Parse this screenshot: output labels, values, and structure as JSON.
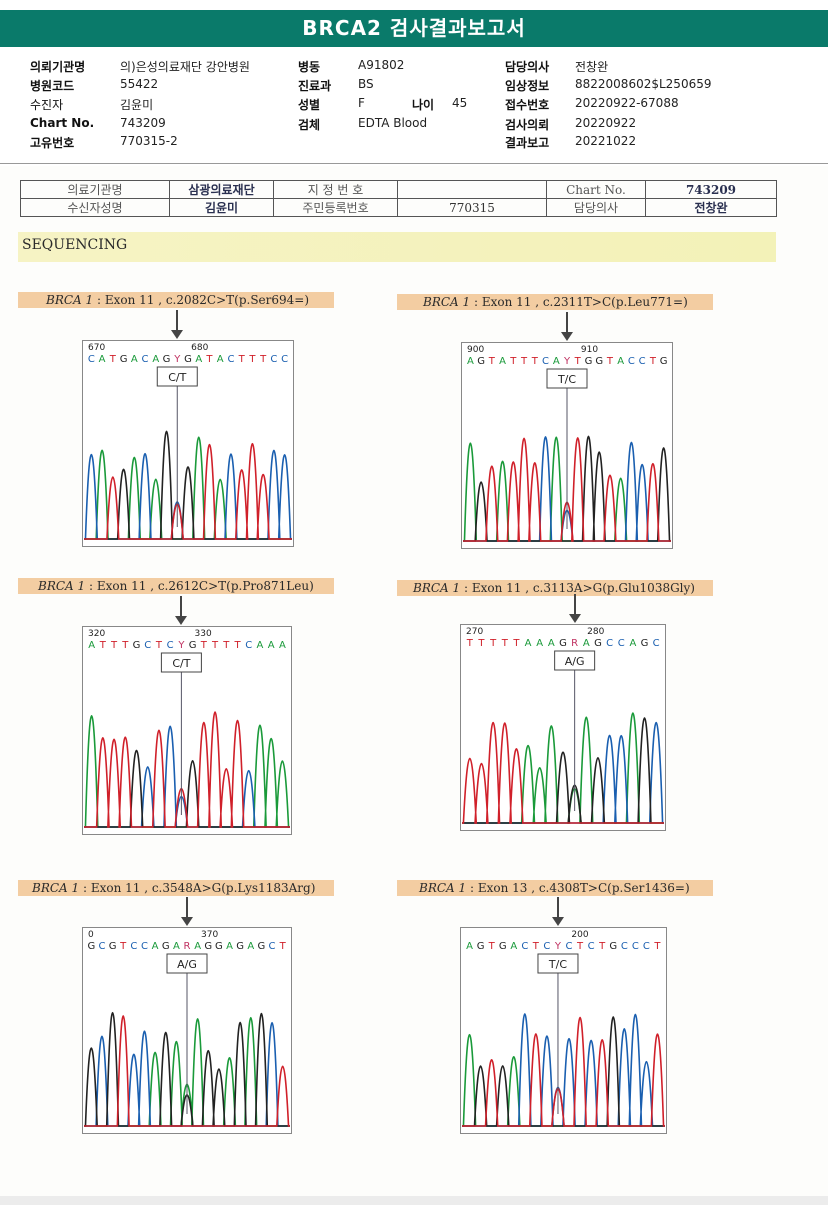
{
  "header": {
    "title": "BRCA2 검사결과보고서"
  },
  "info": {
    "rows": [
      {
        "l1": "의뢰기관명",
        "v1": "의)은성의료재단 강안병원",
        "l2": "병동",
        "v2": "A91802",
        "l3": "담당의사",
        "v3": "전창완"
      },
      {
        "l1": "병원코드",
        "v1": "55422",
        "l2": "진료과",
        "v2": "BS",
        "l3": "임상정보",
        "v3": "8822008602$L250659"
      },
      {
        "l1": "수진자",
        "v1": "김윤미",
        "l2": "성별",
        "v2": "F",
        "l3": "접수번호",
        "v3": "20220922-67088"
      },
      {
        "l1": "Chart No.",
        "v1": "743209",
        "l2": "검체",
        "v2": "EDTA Blood",
        "l3": "검사의뢰",
        "v3": "20220922"
      },
      {
        "l1": "고유번호",
        "v1": "770315-2",
        "l2": "",
        "v2": "",
        "l3": "결과보고",
        "v3": "20221022"
      }
    ],
    "age_label": "나이",
    "age_value": "45"
  },
  "patient_table": {
    "r1": {
      "a": "의료기관명",
      "b": "삼광의료재단",
      "c": "지 정 번 호",
      "d": "",
      "e": "Chart No.",
      "f": "743209"
    },
    "r2": {
      "a": "수신자성명",
      "b": "김윤미",
      "c": "주민등록번호",
      "d": "770315",
      "e": "담당의사",
      "f": "전창완"
    }
  },
  "section": {
    "title": "SEQUENCING"
  },
  "panels": [
    {
      "gene": "BRCA 1",
      "desc": " : Exon 11 , c.2082C>T(p.Ser694=)",
      "seq": "CATGACAGYGATACTTTCC",
      "pos1": "670",
      "pos2": "680",
      "call": "C/T"
    },
    {
      "gene": "BRCA 1",
      "desc": " : Exon 11 , c.2311T>C(p.Leu771=)",
      "seq": "AGTATTTCAYTGGTACCTG",
      "pos1": "900",
      "pos2": "910",
      "call": "T/C"
    },
    {
      "gene": "BRCA 1",
      "desc": " : Exon 11 , c.2612C>T(p.Pro871Leu)",
      "seq": "ATTTGCTCYGTTTTCAAA",
      "pos1": "320",
      "pos2": "330",
      "call": "C/T"
    },
    {
      "gene": "BRCA 1",
      "desc": " : Exon 11 , c.3113A>G(p.Glu1038Gly)",
      "seq": "TTTTTAAAGRAGCCAGC",
      "pos1": "270",
      "pos2": "280",
      "call": "A/G"
    },
    {
      "gene": "BRCA 1",
      "desc": " : Exon 11 , c.3548A>G(p.Lys1183Arg)",
      "seq": "GCGTCCAGARAGGAGAGCT",
      "pos1": "0",
      "pos2": "370",
      "call": "A/G"
    },
    {
      "gene": "BRCA 1",
      "desc": " : Exon 13 , c.4308T>C(p.Ser1436=)",
      "seq": "AGTGACTCYCTCTGCCCT",
      "pos1": "",
      "pos2": "200",
      "call": "T/C"
    }
  ],
  "colors": {
    "header_bg": "#0a7a6a",
    "label_bg": "#f3cda2",
    "band_bg": "#f5f3c0",
    "A": "#1a9a3a",
    "C": "#1a5fb0",
    "G": "#222222",
    "T": "#d0202a"
  }
}
